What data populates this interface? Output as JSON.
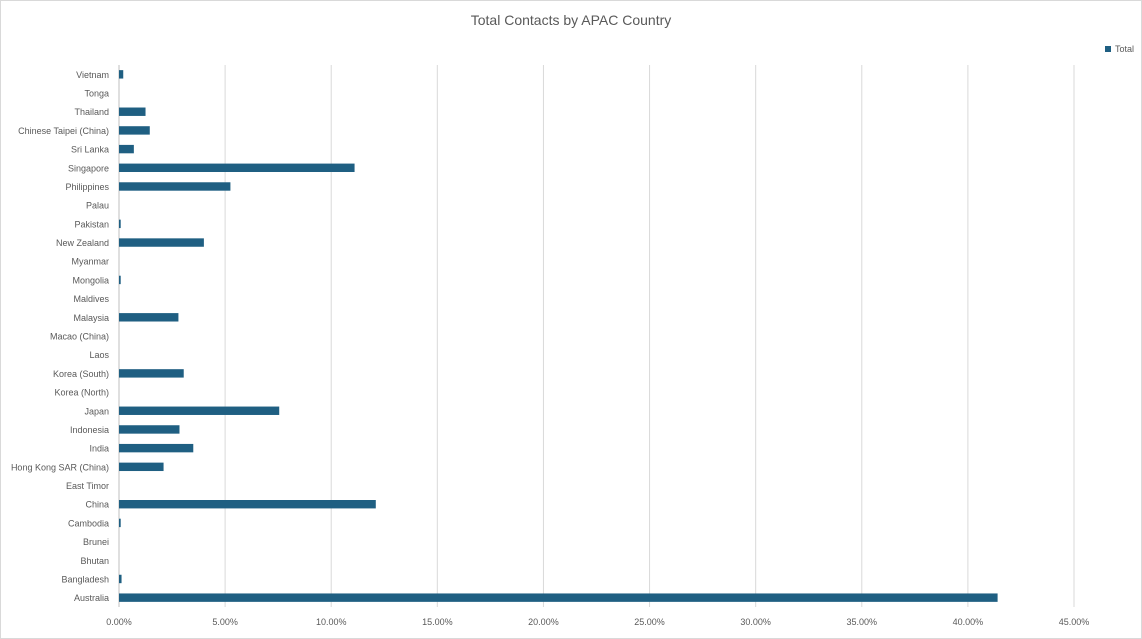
{
  "chart_data": {
    "type": "bar",
    "orientation": "horizontal",
    "title": "Total Contacts by APAC Country",
    "xlabel": "",
    "ylabel": "",
    "xlim": [
      0,
      45
    ],
    "x_ticks": [
      "0.00%",
      "5.00%",
      "10.00%",
      "15.00%",
      "20.00%",
      "25.00%",
      "30.00%",
      "35.00%",
      "40.00%",
      "45.00%"
    ],
    "grid": "vertical",
    "legend_position": "top-right",
    "bar_color": "#1f5f82",
    "categories": [
      "Vietnam",
      "Tonga",
      "Thailand",
      "Chinese Taipei (China)",
      "Sri Lanka",
      "Singapore",
      "Philippines",
      "Palau",
      "Pakistan",
      "New Zealand",
      "Myanmar",
      "Mongolia",
      "Maldives",
      "Malaysia",
      "Macao (China)",
      "Laos",
      "Korea (South)",
      "Korea (North)",
      "Japan",
      "Indonesia",
      "India",
      "Hong Kong SAR (China)",
      "East Timor",
      "China",
      "Cambodia",
      "Brunei",
      "Bhutan",
      "Bangladesh",
      "Australia"
    ],
    "series": [
      {
        "name": "Total",
        "values": [
          0.2,
          0,
          1.25,
          1.45,
          0.7,
          11.1,
          5.25,
          0,
          0.08,
          4.0,
          0,
          0.08,
          0,
          2.8,
          0,
          0,
          3.05,
          0,
          7.55,
          2.85,
          3.5,
          2.1,
          0,
          12.1,
          0.08,
          0,
          0,
          0.12,
          41.4
        ]
      }
    ]
  }
}
